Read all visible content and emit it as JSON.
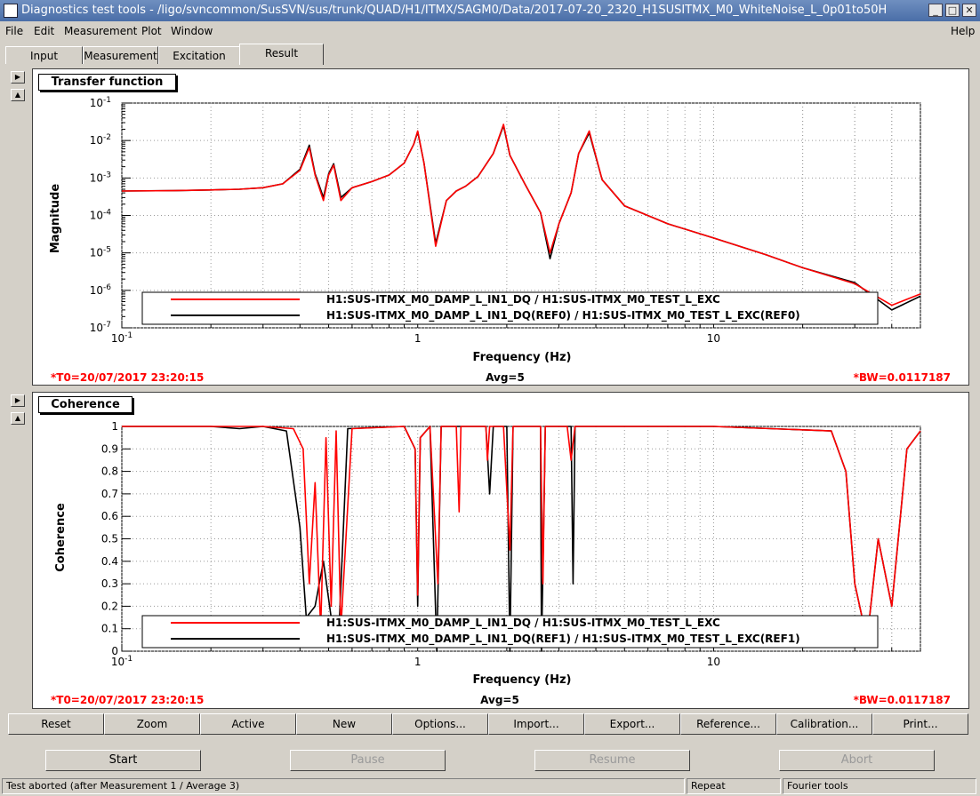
{
  "window": {
    "title": "Diagnostics test tools - /ligo/svncommon/SusSVN/sus/trunk/QUAD/H1/ITMX/SAGM0/Data/2017-07-20_2320_H1SUSITMX_M0_WhiteNoise_L_0p01to50H"
  },
  "menu": {
    "file": "File",
    "edit": "Edit",
    "measurement": "Measurement",
    "plot": "Plot",
    "window": "Window",
    "help": "Help"
  },
  "tabs": {
    "input": "Input",
    "measurement": "Measurement",
    "excitation": "Excitation",
    "result": "Result"
  },
  "plot1": {
    "title": "Transfer function",
    "ylabel": "Magnitude",
    "xlabel": "Frequency (Hz)",
    "t0": "*T0=20/07/2017 23:20:15",
    "avg": "Avg=5",
    "bw": "*BW=0.0117187",
    "legend": [
      {
        "label": "H1:SUS-ITMX_M0_DAMP_L_IN1_DQ / H1:SUS-ITMX_M0_TEST_L_EXC",
        "color": "#ff0000"
      },
      {
        "label": "H1:SUS-ITMX_M0_DAMP_L_IN1_DQ(REF0) / H1:SUS-ITMX_M0_TEST_L_EXC(REF0)",
        "color": "#000000"
      }
    ]
  },
  "plot2": {
    "title": "Coherence",
    "ylabel": "Coherence",
    "xlabel": "Frequency (Hz)",
    "t0": "*T0=20/07/2017 23:20:15",
    "avg": "Avg=5",
    "bw": "*BW=0.0117187",
    "legend": [
      {
        "label": "H1:SUS-ITMX_M0_DAMP_L_IN1_DQ / H1:SUS-ITMX_M0_TEST_L_EXC",
        "color": "#ff0000"
      },
      {
        "label": "H1:SUS-ITMX_M0_DAMP_L_IN1_DQ(REF1) / H1:SUS-ITMX_M0_TEST_L_EXC(REF1)",
        "color": "#000000"
      }
    ]
  },
  "plotButtons": [
    "Reset",
    "Zoom",
    "Active",
    "New",
    "Options...",
    "Import...",
    "Export...",
    "Reference...",
    "Calibration...",
    "Print..."
  ],
  "controls": {
    "start": "Start",
    "pause": "Pause",
    "resume": "Resume",
    "abort": "Abort"
  },
  "status": {
    "message": "Test aborted (after Measurement 1 / Average 3)",
    "repeat": "Repeat",
    "mode": "Fourier tools"
  },
  "chart_data": [
    {
      "type": "line",
      "title": "Transfer function",
      "xlabel": "Frequency (Hz)",
      "ylabel": "Magnitude",
      "xscale": "log",
      "yscale": "log",
      "xlim": [
        0.1,
        50
      ],
      "ylim": [
        1e-07,
        0.1
      ],
      "x_tick_labels": [
        "10^-1",
        "1",
        "10"
      ],
      "y_tick_labels": [
        "10^-7",
        "10^-6",
        "10^-5",
        "10^-4",
        "10^-3",
        "10^-2",
        "10^-1"
      ],
      "grid": true,
      "legend": "bottom",
      "series": [
        {
          "name": "H1:SUS-ITMX_M0_DAMP_L_IN1_DQ / H1:SUS-ITMX_M0_TEST_L_EXC",
          "color": "#ff0000",
          "x": [
            0.1,
            0.15,
            0.2,
            0.25,
            0.3,
            0.35,
            0.4,
            0.43,
            0.45,
            0.48,
            0.5,
            0.52,
            0.55,
            0.6,
            0.7,
            0.8,
            0.9,
            0.97,
            1.0,
            1.05,
            1.15,
            1.25,
            1.35,
            1.45,
            1.6,
            1.8,
            1.95,
            2.05,
            2.3,
            2.6,
            2.8,
            3.0,
            3.3,
            3.5,
            3.8,
            4.2,
            5.0,
            7.0,
            10.0,
            15.0,
            20.0,
            30.0,
            40.0,
            50.0
          ],
          "y": [
            0.00045,
            0.00046,
            0.00048,
            0.0005,
            0.00055,
            0.0007,
            0.0016,
            0.0065,
            0.0012,
            0.00025,
            0.0012,
            0.0022,
            0.00025,
            0.00055,
            0.0008,
            0.0012,
            0.0025,
            0.008,
            0.018,
            0.0025,
            1.5e-05,
            0.00025,
            0.00045,
            0.0006,
            0.0011,
            0.0045,
            0.027,
            0.004,
            0.0007,
            0.00012,
            1e-05,
            6e-05,
            0.0004,
            0.0045,
            0.018,
            0.0009,
            0.00018,
            6e-05,
            2.5e-05,
            9e-06,
            4e-06,
            1.5e-06,
            4e-07,
            8e-07
          ]
        },
        {
          "name": "H1:SUS-ITMX_M0_DAMP_L_IN1_DQ(REF0) / H1:SUS-ITMX_M0_TEST_L_EXC(REF0)",
          "color": "#000000",
          "x": [
            0.1,
            0.15,
            0.2,
            0.25,
            0.3,
            0.35,
            0.4,
            0.43,
            0.45,
            0.48,
            0.5,
            0.52,
            0.55,
            0.6,
            0.7,
            0.8,
            0.9,
            0.97,
            1.0,
            1.05,
            1.15,
            1.25,
            1.35,
            1.45,
            1.6,
            1.8,
            1.95,
            2.05,
            2.3,
            2.6,
            2.8,
            3.0,
            3.3,
            3.5,
            3.8,
            4.2,
            5.0,
            7.0,
            10.0,
            15.0,
            20.0,
            30.0,
            40.0,
            50.0
          ],
          "y": [
            0.00045,
            0.00046,
            0.00048,
            0.0005,
            0.00055,
            0.0007,
            0.0017,
            0.0075,
            0.0013,
            0.0003,
            0.0013,
            0.0024,
            0.0003,
            0.00055,
            0.0008,
            0.0012,
            0.0025,
            0.008,
            0.017,
            0.0025,
            1.8e-05,
            0.00025,
            0.00045,
            0.0006,
            0.0011,
            0.0045,
            0.025,
            0.004,
            0.0007,
            0.00012,
            7e-06,
            6e-05,
            0.0004,
            0.0045,
            0.016,
            0.0009,
            0.00018,
            6e-05,
            2.5e-05,
            9e-06,
            4e-06,
            1.6e-06,
            3e-07,
            7e-07
          ]
        }
      ]
    },
    {
      "type": "line",
      "title": "Coherence",
      "xlabel": "Frequency (Hz)",
      "ylabel": "Coherence",
      "xscale": "log",
      "xlim": [
        0.1,
        50
      ],
      "ylim": [
        0,
        1
      ],
      "x_tick_labels": [
        "10^-1",
        "1",
        "10"
      ],
      "y_tick_labels": [
        "0",
        "0.1",
        "0.2",
        "0.3",
        "0.4",
        "0.5",
        "0.6",
        "0.7",
        "0.8",
        "0.9",
        "1"
      ],
      "grid": true,
      "legend": "bottom",
      "series": [
        {
          "name": "H1:SUS-ITMX_M0_DAMP_L_IN1_DQ / H1:SUS-ITMX_M0_TEST_L_EXC",
          "color": "#ff0000",
          "x": [
            0.1,
            0.3,
            0.38,
            0.41,
            0.43,
            0.45,
            0.47,
            0.49,
            0.51,
            0.53,
            0.55,
            0.6,
            0.9,
            0.98,
            1.0,
            1.02,
            1.1,
            1.17,
            1.2,
            1.35,
            1.38,
            1.4,
            1.7,
            1.72,
            1.75,
            1.95,
            2.05,
            2.1,
            2.6,
            2.65,
            2.7,
            2.8,
            3.2,
            3.3,
            3.4,
            3.8,
            10.0,
            25.0,
            28.0,
            30.0,
            33.0,
            36.0,
            40.0,
            45.0,
            50.0
          ],
          "y": [
            1.0,
            1.0,
            0.99,
            0.9,
            0.3,
            0.75,
            0.1,
            0.95,
            0.2,
            0.98,
            0.1,
            0.99,
            1.0,
            0.9,
            0.25,
            0.95,
            1.0,
            0.3,
            1.0,
            1.0,
            0.62,
            1.0,
            1.0,
            0.85,
            1.0,
            1.0,
            0.45,
            1.0,
            1.0,
            0.3,
            1.0,
            1.0,
            1.0,
            0.85,
            1.0,
            1.0,
            1.0,
            0.98,
            0.8,
            0.3,
            0.05,
            0.5,
            0.2,
            0.9,
            0.98
          ]
        },
        {
          "name": "H1:SUS-ITMX_M0_DAMP_L_IN1_DQ(REF1) / H1:SUS-ITMX_M0_TEST_L_EXC(REF1)",
          "color": "#000000",
          "x": [
            0.1,
            0.2,
            0.25,
            0.3,
            0.36,
            0.4,
            0.42,
            0.45,
            0.48,
            0.51,
            0.54,
            0.58,
            0.9,
            0.98,
            1.0,
            1.02,
            1.1,
            1.16,
            1.2,
            1.7,
            1.75,
            1.8,
            2.0,
            2.05,
            2.1,
            2.6,
            2.62,
            2.7,
            3.3,
            3.35,
            3.4,
            10.0,
            25.0,
            28.0,
            30.0,
            33.0,
            36.0,
            40.0,
            45.0,
            50.0
          ],
          "y": [
            1.0,
            1.0,
            0.99,
            1.0,
            0.98,
            0.55,
            0.15,
            0.2,
            0.4,
            0.15,
            0.05,
            0.99,
            1.0,
            0.9,
            0.2,
            0.95,
            1.0,
            0.0,
            1.0,
            1.0,
            0.7,
            1.0,
            1.0,
            0.0,
            1.0,
            1.0,
            0.0,
            1.0,
            1.0,
            0.3,
            1.0,
            1.0,
            0.98,
            0.8,
            0.3,
            0.05,
            0.5,
            0.2,
            0.9,
            0.98
          ]
        }
      ]
    }
  ]
}
